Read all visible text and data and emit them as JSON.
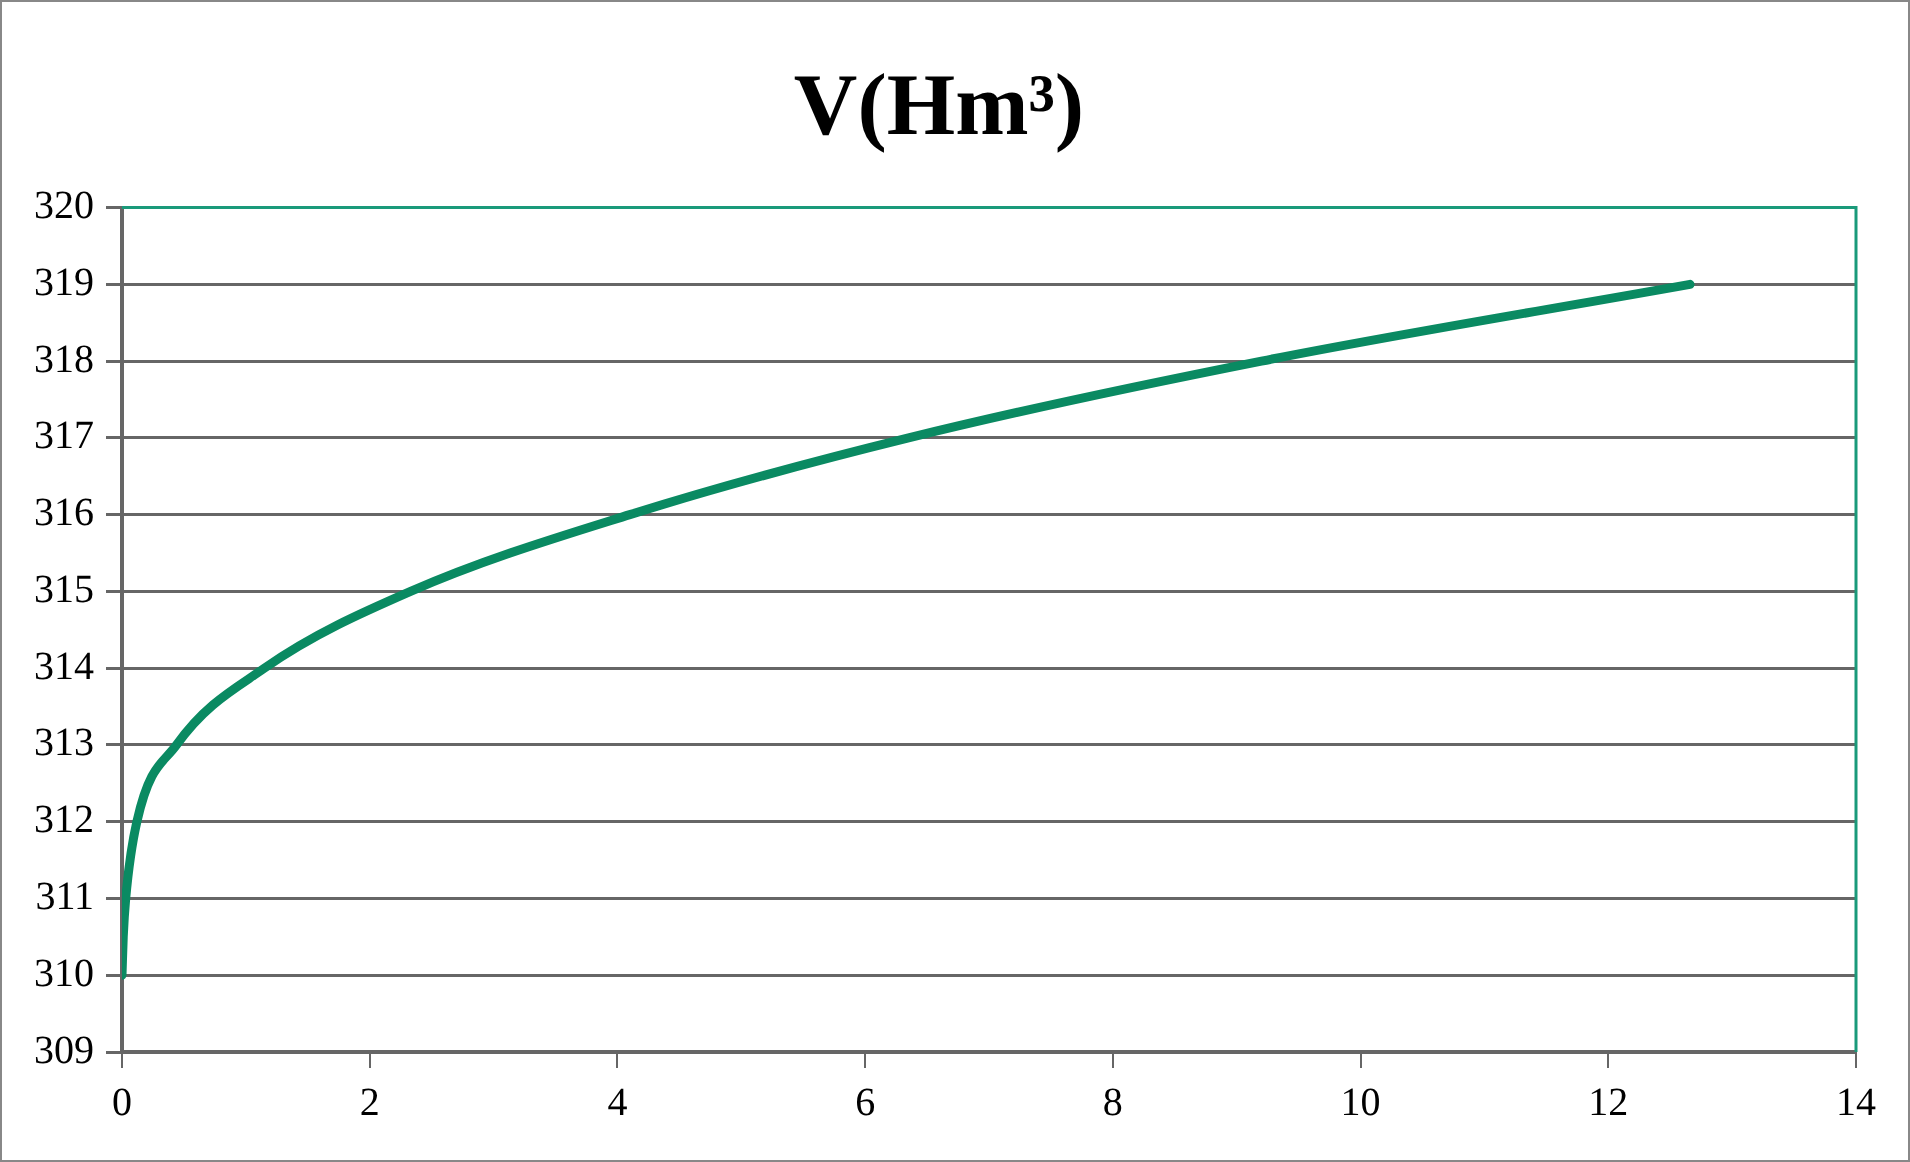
{
  "chart_data": {
    "type": "line",
    "title": "V(Hm³)",
    "x": [
      0,
      0.01,
      0.03,
      0.12,
      0.44,
      1.15,
      2.33,
      4.1,
      6.35,
      9.2,
      12.66
    ],
    "series": [
      {
        "color": "#0a8a62",
        "values": [
          310,
          310.5,
          311,
          312,
          313,
          314,
          315,
          316,
          317,
          318,
          319
        ]
      }
    ],
    "xlim": [
      0,
      14
    ],
    "xticks": [
      0,
      2,
      4,
      6,
      8,
      10,
      12,
      14
    ],
    "ylim": [
      309,
      320
    ],
    "yticks": [
      309,
      310,
      311,
      312,
      313,
      314,
      315,
      316,
      317,
      318,
      319,
      320
    ],
    "grid": "y",
    "legend": false,
    "marker": "none",
    "line_style": "solid"
  }
}
